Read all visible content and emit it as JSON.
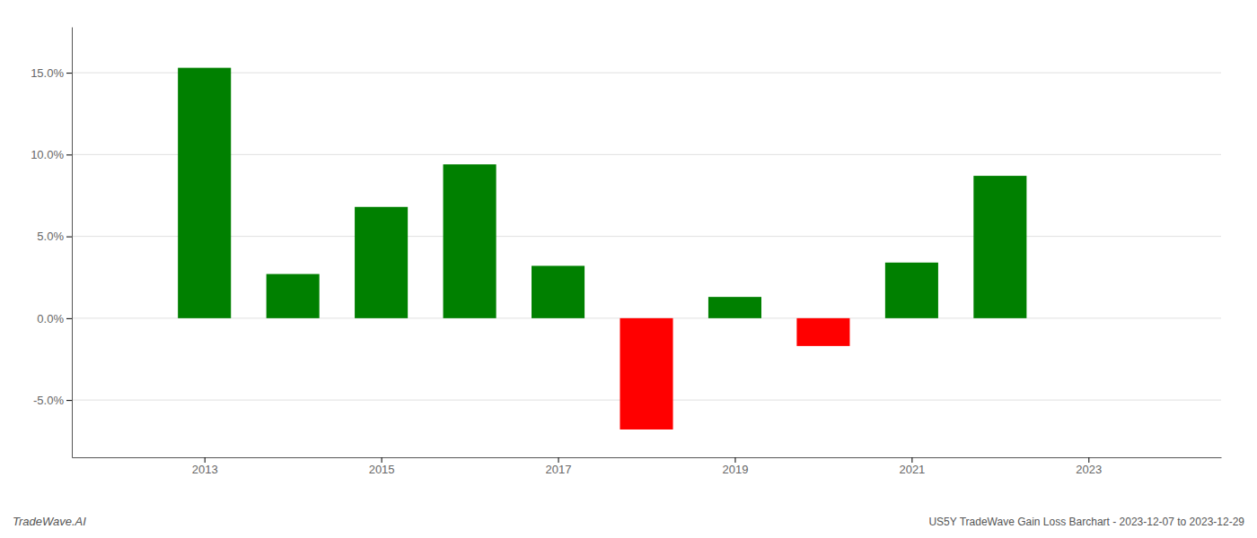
{
  "chart_data": {
    "type": "bar",
    "title": "US5Y TradeWave Gain Loss Barchart - 2023-12-07 to 2023-12-29",
    "annotations": [
      "TradeWave.AI"
    ],
    "x": [
      2013,
      2014,
      2015,
      2016,
      2017,
      2018,
      2019,
      2020,
      2021,
      2022
    ],
    "values": [
      0.153,
      0.027,
      0.068,
      0.094,
      0.032,
      -0.068,
      0.013,
      -0.017,
      0.034,
      0.087
    ],
    "colors": [
      "#008000",
      "#008000",
      "#008000",
      "#008000",
      "#008000",
      "#ff0000",
      "#008000",
      "#ff0000",
      "#008000",
      "#008000"
    ],
    "xlim": [
      2011.5,
      2024.5
    ],
    "xticks": [
      2013,
      2015,
      2017,
      2019,
      2021,
      2023
    ],
    "ylim": [
      -0.085,
      0.178
    ],
    "yticks": [
      {
        "value": -0.05,
        "label": "-5.0%"
      },
      {
        "value": 0.0,
        "label": "0.0%"
      },
      {
        "value": 0.05,
        "label": "5.0%"
      },
      {
        "value": 0.1,
        "label": "10.0%"
      },
      {
        "value": 0.15,
        "label": "15.0%"
      }
    ],
    "grid": true
  }
}
